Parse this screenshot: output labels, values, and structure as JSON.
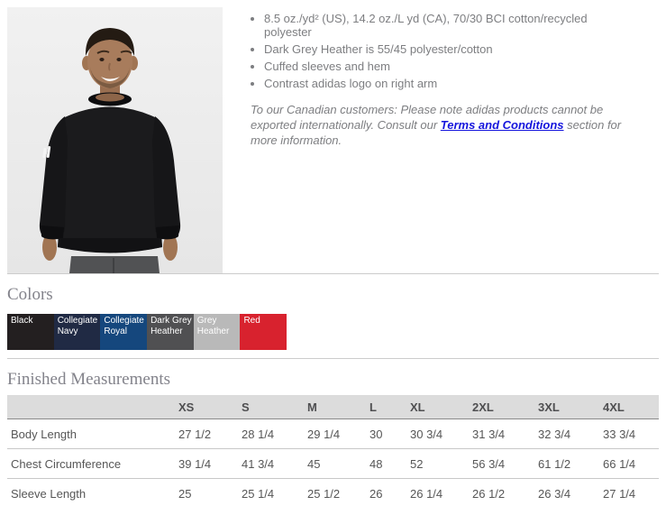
{
  "product": {
    "photo_alt": "Man wearing black adidas crewneck sweatshirt",
    "bullets": [
      "8.5 oz./yd² (US), 14.2 oz./L yd (CA), 70/30 BCI cotton/recycled polyester",
      "Dark Grey Heather is 55/45 polyester/cotton",
      "Cuffed sleeves and hem",
      "Contrast adidas logo on right arm"
    ],
    "note": {
      "before_link": "To our Canadian customers: Please note adidas products cannot be exported internationally. Consult our ",
      "link_text": "Terms and Conditions",
      "after_link": " section for more information."
    }
  },
  "colors_section": {
    "heading": "Colors",
    "swatches": [
      {
        "name": "Black",
        "hex": "#231f20"
      },
      {
        "name": "Collegiate Navy",
        "hex": "#202a44"
      },
      {
        "name": "Collegiate Royal",
        "hex": "#15477d"
      },
      {
        "name": "Dark Grey Heather",
        "hex": "#505052"
      },
      {
        "name": "Grey Heather",
        "hex": "#b9b9b9"
      },
      {
        "name": "Red",
        "hex": "#d8222e"
      }
    ]
  },
  "measurements": {
    "heading": "Finished Measurements",
    "columns": [
      "XS",
      "S",
      "M",
      "L",
      "XL",
      "2XL",
      "3XL",
      "4XL"
    ],
    "rows": [
      {
        "label": "Body Length",
        "values": [
          "27 1/2",
          "28 1/4",
          "29 1/4",
          "30",
          "30 3/4",
          "31 3/4",
          "32 3/4",
          "33 3/4"
        ]
      },
      {
        "label": "Chest Circumference",
        "values": [
          "39 1/4",
          "41 3/4",
          "45",
          "48",
          "52",
          "56 3/4",
          "61 1/2",
          "66 1/4"
        ]
      },
      {
        "label": "Sleeve Length",
        "values": [
          "25",
          "25 1/4",
          "25 1/2",
          "26",
          "26 1/4",
          "26 1/2",
          "26 3/4",
          "27 1/4"
        ]
      }
    ]
  }
}
